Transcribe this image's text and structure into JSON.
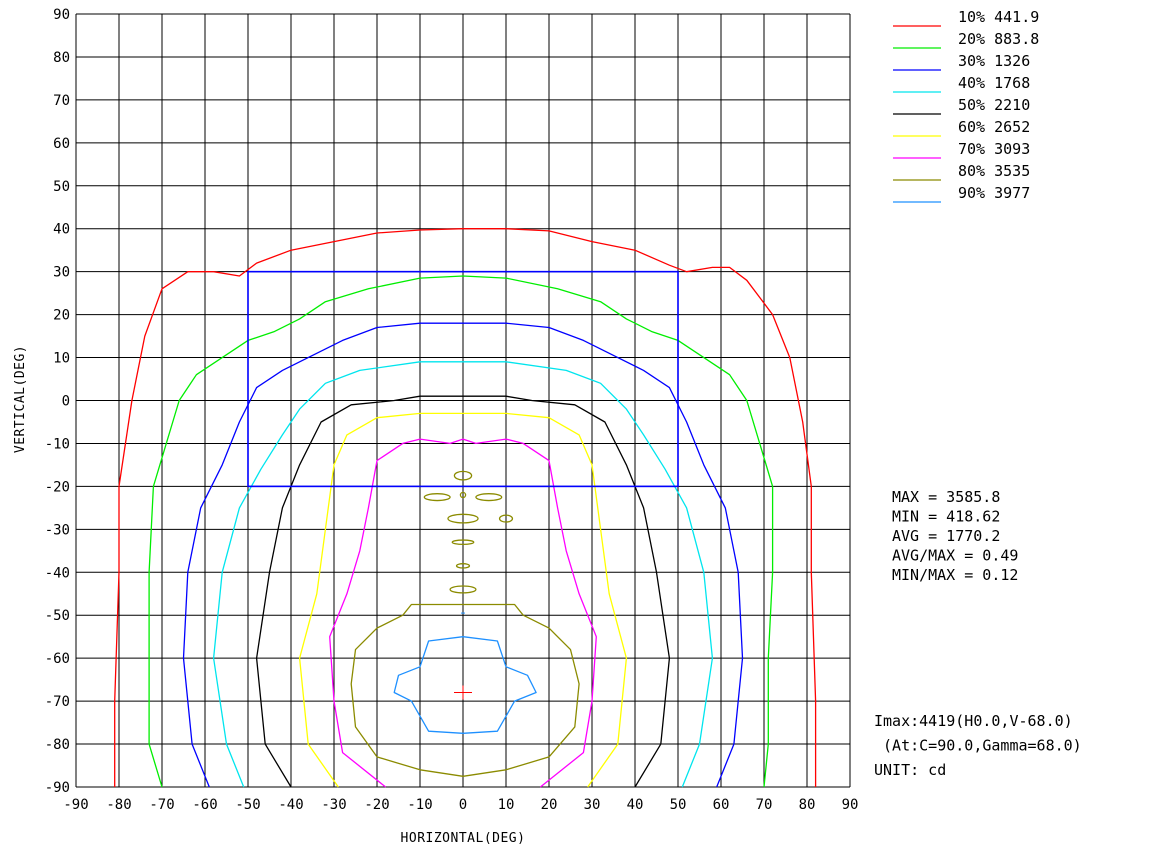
{
  "chart_data": {
    "type": "contour",
    "xlabel": "HORIZONTAL(DEG)",
    "ylabel": "VERTICAL(DEG)",
    "xlim": [
      -90,
      90
    ],
    "ylim": [
      -90,
      90
    ],
    "x_ticks": [
      "-90",
      "-80",
      "-70",
      "-60",
      "-50",
      "-40",
      "-30",
      "-20",
      "-10",
      "0",
      "10",
      "20",
      "30",
      "40",
      "50",
      "60",
      "70",
      "80",
      "90"
    ],
    "y_ticks": [
      "90",
      "80",
      "70",
      "60",
      "50",
      "40",
      "30",
      "20",
      "10",
      "0",
      "-10",
      "-20",
      "-30",
      "-40",
      "-50",
      "-60",
      "-70",
      "-80",
      "-90"
    ],
    "grid": true,
    "legend_position": "top-right",
    "levels": [
      {
        "label": "10% 441.9",
        "percent": 10,
        "value": 441.9,
        "color": "#ff0000",
        "points": [
          [
            -81,
            -90
          ],
          [
            -81,
            -70
          ],
          [
            -80,
            -40
          ],
          [
            -80,
            -20
          ],
          [
            -77,
            0
          ],
          [
            -74,
            15
          ],
          [
            -70,
            26
          ],
          [
            -64,
            30
          ],
          [
            -58,
            30
          ],
          [
            -52,
            29
          ],
          [
            -48,
            32
          ],
          [
            -40,
            35
          ],
          [
            -30,
            37
          ],
          [
            -20,
            39
          ],
          [
            -10,
            39.7
          ],
          [
            0,
            40
          ],
          [
            10,
            40
          ],
          [
            20,
            39.5
          ],
          [
            30,
            37
          ],
          [
            40,
            35
          ],
          [
            48,
            31.5
          ],
          [
            52,
            30
          ],
          [
            58,
            31
          ],
          [
            62,
            31
          ],
          [
            66,
            28
          ],
          [
            72,
            20
          ],
          [
            76,
            10
          ],
          [
            79,
            -5
          ],
          [
            81,
            -20
          ],
          [
            81,
            -40
          ],
          [
            82,
            -70
          ],
          [
            82,
            -90
          ]
        ]
      },
      {
        "label": "20% 883.8",
        "percent": 20,
        "value": 883.8,
        "color": "#00ee00",
        "points": [
          [
            -70,
            -90
          ],
          [
            -73,
            -80
          ],
          [
            -73,
            -60
          ],
          [
            -73,
            -40
          ],
          [
            -72,
            -20
          ],
          [
            -69,
            -10
          ],
          [
            -66,
            0
          ],
          [
            -62,
            6
          ],
          [
            -56,
            10
          ],
          [
            -50,
            14
          ],
          [
            -44,
            16
          ],
          [
            -38,
            19
          ],
          [
            -32,
            23
          ],
          [
            -22,
            26
          ],
          [
            -10,
            28.5
          ],
          [
            0,
            29
          ],
          [
            10,
            28.5
          ],
          [
            22,
            26
          ],
          [
            32,
            23
          ],
          [
            38,
            19
          ],
          [
            44,
            16
          ],
          [
            50,
            14
          ],
          [
            56,
            10
          ],
          [
            62,
            6
          ],
          [
            66,
            0
          ],
          [
            69,
            -10
          ],
          [
            72,
            -20
          ],
          [
            72,
            -40
          ],
          [
            71,
            -60
          ],
          [
            71,
            -80
          ],
          [
            70,
            -90
          ]
        ]
      },
      {
        "label": "30% 1326",
        "percent": 30,
        "value": 1326,
        "color": "#0000ff",
        "points": [
          [
            -59,
            -90
          ],
          [
            -63,
            -80
          ],
          [
            -65,
            -60
          ],
          [
            -64,
            -40
          ],
          [
            -61,
            -25
          ],
          [
            -56,
            -15
          ],
          [
            -52,
            -5
          ],
          [
            -48,
            3
          ],
          [
            -42,
            7
          ],
          [
            -36,
            10
          ],
          [
            -28,
            14
          ],
          [
            -20,
            17
          ],
          [
            -10,
            18
          ],
          [
            0,
            18
          ],
          [
            10,
            18
          ],
          [
            20,
            17
          ],
          [
            28,
            14
          ],
          [
            36,
            10
          ],
          [
            42,
            7
          ],
          [
            48,
            3
          ],
          [
            52,
            -5
          ],
          [
            56,
            -15
          ],
          [
            61,
            -25
          ],
          [
            64,
            -40
          ],
          [
            65,
            -60
          ],
          [
            63,
            -80
          ],
          [
            59,
            -90
          ]
        ]
      },
      {
        "label": "40% 1768",
        "percent": 40,
        "value": 1768,
        "color": "#00e5ee",
        "points": [
          [
            -51,
            -90
          ],
          [
            -55,
            -80
          ],
          [
            -58,
            -60
          ],
          [
            -56,
            -40
          ],
          [
            -52,
            -25
          ],
          [
            -47,
            -16
          ],
          [
            -42,
            -8
          ],
          [
            -38,
            -2
          ],
          [
            -32,
            4
          ],
          [
            -24,
            7
          ],
          [
            -10,
            9
          ],
          [
            0,
            9
          ],
          [
            10,
            9
          ],
          [
            24,
            7
          ],
          [
            32,
            4
          ],
          [
            38,
            -2
          ],
          [
            42,
            -8
          ],
          [
            47,
            -16
          ],
          [
            52,
            -25
          ],
          [
            56,
            -40
          ],
          [
            58,
            -60
          ],
          [
            55,
            -80
          ],
          [
            51,
            -90
          ]
        ]
      },
      {
        "label": "50% 2210",
        "percent": 50,
        "value": 2210,
        "color": "#000000",
        "points": [
          [
            -40,
            -90
          ],
          [
            -46,
            -80
          ],
          [
            -48,
            -60
          ],
          [
            -45,
            -40
          ],
          [
            -42,
            -25
          ],
          [
            -38,
            -15
          ],
          [
            -33,
            -5
          ],
          [
            -26,
            -1
          ],
          [
            -16,
            0
          ],
          [
            -10,
            1
          ],
          [
            0,
            1
          ],
          [
            10,
            1
          ],
          [
            16,
            0
          ],
          [
            26,
            -1
          ],
          [
            33,
            -5
          ],
          [
            38,
            -15
          ],
          [
            42,
            -25
          ],
          [
            45,
            -40
          ],
          [
            48,
            -60
          ],
          [
            46,
            -80
          ],
          [
            40,
            -90
          ]
        ]
      },
      {
        "label": "60% 2652",
        "percent": 60,
        "value": 2652,
        "color": "#ffff00",
        "points": [
          [
            -29,
            -90
          ],
          [
            -36,
            -80
          ],
          [
            -38,
            -60
          ],
          [
            -34,
            -45
          ],
          [
            -32,
            -30
          ],
          [
            -30,
            -15
          ],
          [
            -27,
            -8
          ],
          [
            -20,
            -4
          ],
          [
            -10,
            -3
          ],
          [
            0,
            -3
          ],
          [
            10,
            -3
          ],
          [
            20,
            -4
          ],
          [
            27,
            -8
          ],
          [
            30,
            -15
          ],
          [
            32,
            -30
          ],
          [
            34,
            -45
          ],
          [
            38,
            -60
          ],
          [
            36,
            -80
          ],
          [
            29,
            -90
          ]
        ]
      },
      {
        "label": "70% 3093",
        "percent": 70,
        "value": 3093,
        "color": "#ff00ff",
        "points": [
          [
            -18,
            -90
          ],
          [
            -28,
            -82
          ],
          [
            -30,
            -70
          ],
          [
            -31,
            -55
          ],
          [
            -27,
            -45
          ],
          [
            -24,
            -35
          ],
          [
            -22,
            -25
          ],
          [
            -20,
            -14
          ],
          [
            -14,
            -10
          ],
          [
            -10,
            -9
          ],
          [
            -3,
            -10
          ],
          [
            0,
            -9
          ],
          [
            3,
            -10
          ],
          [
            10,
            -9
          ],
          [
            14,
            -10
          ],
          [
            20,
            -14
          ],
          [
            22,
            -25
          ],
          [
            24,
            -35
          ],
          [
            27,
            -45
          ],
          [
            31,
            -55
          ],
          [
            30,
            -70
          ],
          [
            28,
            -82
          ],
          [
            18,
            -90
          ]
        ]
      },
      {
        "label": "80% 3535",
        "percent": 80,
        "value": 3535,
        "color": "#8b8b00",
        "points": [
          [
            0,
            -87.5
          ],
          [
            -10,
            -86
          ],
          [
            -20,
            -83
          ],
          [
            -25,
            -76
          ],
          [
            -26,
            -66
          ],
          [
            -25,
            -58
          ],
          [
            -20,
            -53
          ],
          [
            -14,
            -50
          ],
          [
            -12,
            -47.5
          ],
          [
            0,
            -47.5
          ],
          [
            12,
            -47.5
          ],
          [
            14,
            -50
          ],
          [
            20,
            -53
          ],
          [
            25,
            -58
          ],
          [
            27,
            -66
          ],
          [
            26,
            -76
          ],
          [
            20,
            -83
          ],
          [
            10,
            -86
          ],
          [
            0,
            -87.5
          ]
        ]
      },
      {
        "label": "90% 3977",
        "percent": 90,
        "value": 3977,
        "color": "#1e90ff",
        "points": [
          [
            0,
            -77.5
          ],
          [
            -8,
            -77
          ],
          [
            -12,
            -70
          ],
          [
            -16,
            -68
          ],
          [
            -15,
            -64
          ],
          [
            -10,
            -62
          ],
          [
            -8,
            -56
          ],
          [
            0,
            -55
          ],
          [
            8,
            -56
          ],
          [
            10,
            -62
          ],
          [
            15,
            -64
          ],
          [
            17,
            -68
          ],
          [
            12,
            -70
          ],
          [
            8,
            -77
          ],
          [
            0,
            -77.5
          ]
        ]
      }
    ],
    "small_islands": [
      {
        "color": "#8b8b00",
        "cx": 0,
        "cy": -17.5,
        "rx": 2,
        "ry": 1
      },
      {
        "color": "#8b8b00",
        "cx": -6,
        "cy": -22.5,
        "rx": 3,
        "ry": 0.8
      },
      {
        "color": "#8b8b00",
        "cx": 0,
        "cy": -22,
        "rx": 0.6,
        "ry": 0.6
      },
      {
        "color": "#8b8b00",
        "cx": 6,
        "cy": -22.5,
        "rx": 3,
        "ry": 0.8
      },
      {
        "color": "#8b8b00",
        "cx": 0,
        "cy": -27.5,
        "rx": 3.5,
        "ry": 1
      },
      {
        "color": "#8b8b00",
        "cx": 10,
        "cy": -27.5,
        "rx": 1.5,
        "ry": 0.8
      },
      {
        "color": "#8b8b00",
        "cx": 0,
        "cy": -33,
        "rx": 2.5,
        "ry": 0.5
      },
      {
        "color": "#8b8b00",
        "cx": 0,
        "cy": -38.5,
        "rx": 1.5,
        "ry": 0.5
      },
      {
        "color": "#8b8b00",
        "cx": 0,
        "cy": -44,
        "rx": 3,
        "ry": 0.8
      }
    ],
    "rectangle": {
      "x": [
        -50,
        50
      ],
      "y": [
        -20,
        30
      ],
      "color": "#0000ff"
    },
    "max_marker": {
      "x": 0,
      "y": -68,
      "color": "#ff0000"
    },
    "small_marker": {
      "x": 0,
      "y": -49.5,
      "color": "#1e90ff"
    },
    "stats": [
      "MAX = 3585.8",
      "MIN = 418.62",
      "AVG = 1770.2",
      "AVG/MAX = 0.49",
      "MIN/MAX = 0.12"
    ],
    "imax_lines": [
      "Imax:4419(H0.0,V-68.0)",
      " (At:C=90.0,Gamma=68.0)",
      "UNIT: cd"
    ]
  }
}
